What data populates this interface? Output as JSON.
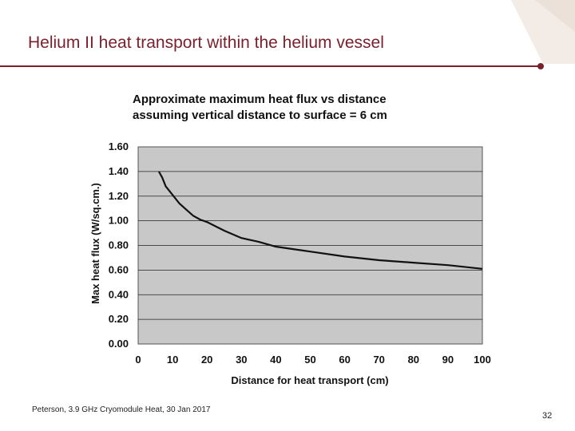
{
  "slide": {
    "title": "Helium II heat transport within the helium vessel",
    "footer": "Peterson, 3.9 GHz Cryomodule Heat, 30 Jan 2017",
    "page_number": "32",
    "accent_color": "#7a1f2b"
  },
  "chart_data": {
    "type": "line",
    "title": [
      "Approximate maximum heat flux vs distance",
      "assuming vertical distance to surface = 6 cm"
    ],
    "xlabel": "Distance for heat transport (cm)",
    "ylabel": "Max heat flux (W/sq.cm.)",
    "xlim": [
      0,
      100
    ],
    "ylim": [
      0,
      1.6
    ],
    "xticks": [
      "0",
      "10",
      "20",
      "30",
      "40",
      "50",
      "60",
      "70",
      "80",
      "90",
      "100"
    ],
    "yticks": [
      "0.00",
      "0.20",
      "0.40",
      "0.60",
      "0.80",
      "1.00",
      "1.20",
      "1.40",
      "1.60"
    ],
    "grid": true,
    "plot_background": "#c8c8c8",
    "line_color": "#111111",
    "x": [
      6,
      7,
      8,
      10,
      12,
      14,
      16,
      18,
      20,
      25,
      30,
      35,
      40,
      45,
      50,
      60,
      70,
      80,
      90,
      100
    ],
    "y": [
      1.4,
      1.35,
      1.28,
      1.21,
      1.14,
      1.09,
      1.04,
      1.01,
      0.99,
      0.92,
      0.86,
      0.83,
      0.79,
      0.77,
      0.75,
      0.71,
      0.68,
      0.66,
      0.64,
      0.61
    ]
  }
}
